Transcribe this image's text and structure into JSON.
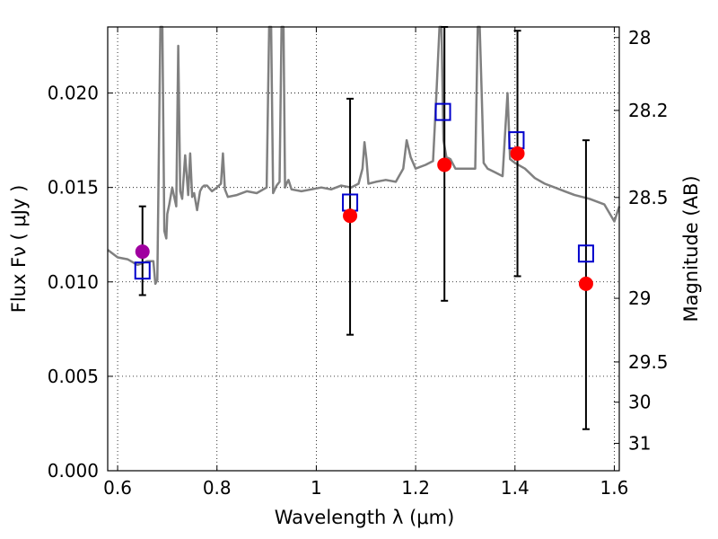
{
  "chart_data": {
    "type": "scatter",
    "xlabel": "Wavelength  λ (μm)",
    "ylabel": "Flux  Fν  ( μJy )",
    "y2label": "Magnitude (AB)",
    "xlim": [
      0.58,
      1.61
    ],
    "ylim": [
      0.0,
      0.0235
    ],
    "grid": true,
    "x_ticks": [
      0.6,
      0.8,
      1.0,
      1.2,
      1.4,
      1.6
    ],
    "x_tick_labels": [
      "0.6",
      "0.8",
      "1",
      "1.2",
      "1.4",
      "1.6"
    ],
    "y_ticks": [
      0.0,
      0.005,
      0.01,
      0.015,
      0.02
    ],
    "y_tick_labels": [
      "0.000",
      "0.005",
      "0.010",
      "0.015",
      "0.020"
    ],
    "y2_ticks": [
      {
        "mag": "28",
        "flux": 0.02294
      },
      {
        "mag": "28.2",
        "flux": 0.01908
      },
      {
        "mag": "28.5",
        "flux": 0.01447
      },
      {
        "mag": "29",
        "flux": 0.00913
      },
      {
        "mag": "29.5",
        "flux": 0.00576
      },
      {
        "mag": "30",
        "flux": 0.00363
      },
      {
        "mag": "31",
        "flux": 0.00145
      }
    ],
    "colors": {
      "spectrum": "#808080",
      "observed": "#ff0000",
      "observed_first": "#a000a0",
      "model": "#0000cc",
      "errorbar": "#000000"
    },
    "spectrum": {
      "name": "",
      "x": [
        0.58,
        0.6,
        0.62,
        0.64,
        0.66,
        0.672,
        0.676,
        0.68,
        0.686,
        0.69,
        0.694,
        0.698,
        0.7,
        0.704,
        0.71,
        0.718,
        0.722,
        0.726,
        0.73,
        0.736,
        0.742,
        0.746,
        0.75,
        0.754,
        0.76,
        0.766,
        0.77,
        0.774,
        0.78,
        0.79,
        0.8,
        0.808,
        0.812,
        0.816,
        0.822,
        0.84,
        0.86,
        0.88,
        0.9,
        0.905,
        0.909,
        0.913,
        0.92,
        0.926,
        0.93,
        0.934,
        0.937,
        0.94,
        0.944,
        0.95,
        0.97,
        0.99,
        1.01,
        1.03,
        1.05,
        1.07,
        1.085,
        1.093,
        1.097,
        1.101,
        1.105,
        1.12,
        1.14,
        1.16,
        1.175,
        1.182,
        1.19,
        1.2,
        1.22,
        1.235,
        1.242,
        1.248,
        1.252,
        1.256,
        1.262,
        1.27,
        1.28,
        1.3,
        1.32,
        1.325,
        1.329,
        1.333,
        1.337,
        1.345,
        1.36,
        1.375,
        1.38,
        1.385,
        1.39,
        1.4,
        1.42,
        1.44,
        1.46,
        1.48,
        1.5,
        1.52,
        1.55,
        1.58,
        1.6,
        1.61
      ],
      "y": [
        0.0117,
        0.0113,
        0.0112,
        0.0109,
        0.0111,
        0.0111,
        0.0099,
        0.0101,
        0.0235,
        0.0235,
        0.0127,
        0.0123,
        0.0136,
        0.0141,
        0.015,
        0.014,
        0.0225,
        0.0148,
        0.0144,
        0.0167,
        0.0146,
        0.0168,
        0.0145,
        0.0147,
        0.0138,
        0.0148,
        0.015,
        0.0151,
        0.0151,
        0.0148,
        0.015,
        0.0152,
        0.0168,
        0.0149,
        0.0145,
        0.0146,
        0.0148,
        0.0147,
        0.015,
        0.0235,
        0.0235,
        0.0147,
        0.0151,
        0.0153,
        0.0235,
        0.0235,
        0.015,
        0.0152,
        0.0154,
        0.0149,
        0.0148,
        0.0149,
        0.015,
        0.0149,
        0.0151,
        0.015,
        0.0152,
        0.016,
        0.0174,
        0.0165,
        0.0152,
        0.0153,
        0.0154,
        0.0153,
        0.016,
        0.0175,
        0.0166,
        0.016,
        0.0162,
        0.0164,
        0.02,
        0.0235,
        0.0235,
        0.0175,
        0.0166,
        0.0165,
        0.016,
        0.016,
        0.016,
        0.0235,
        0.0235,
        0.02,
        0.0163,
        0.016,
        0.0158,
        0.0156,
        0.0178,
        0.02,
        0.0165,
        0.0163,
        0.016,
        0.0155,
        0.0152,
        0.015,
        0.0148,
        0.0146,
        0.0144,
        0.0141,
        0.0132,
        0.014
      ]
    },
    "observed": [
      {
        "x": 0.65,
        "y": 0.0116,
        "err_low": 0.0093,
        "err_high": 0.014
      },
      {
        "x": 1.068,
        "y": 0.0135,
        "err_low": 0.0072,
        "err_high": 0.0197
      },
      {
        "x": 1.258,
        "y": 0.0162,
        "err_low": 0.009,
        "err_high": 0.0235
      },
      {
        "x": 1.405,
        "y": 0.0168,
        "err_low": 0.0103,
        "err_high": 0.0233
      },
      {
        "x": 1.543,
        "y": 0.0099,
        "err_low": 0.0022,
        "err_high": 0.0175
      }
    ],
    "model": [
      {
        "x": 0.65,
        "y": 0.0106
      },
      {
        "x": 1.068,
        "y": 0.0142
      },
      {
        "x": 1.255,
        "y": 0.019
      },
      {
        "x": 1.403,
        "y": 0.0175
      },
      {
        "x": 1.543,
        "y": 0.0115
      }
    ]
  }
}
